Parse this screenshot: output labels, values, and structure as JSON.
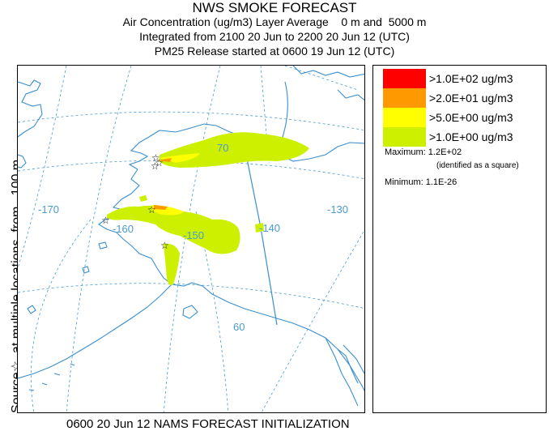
{
  "title": {
    "line1": "NWS SMOKE FORECAST",
    "line2": "Air Concentration (ug/m3) Layer Average    0 m and  5000 m",
    "line3": "Integrated from 2100 20 Jun to 2200 20 Jun 12 (UTC)",
    "line4": "PM25 Release started at 0600 19 Jun 12 (UTC)"
  },
  "side_label": "Source☆  at multiple locations  from   100 m",
  "footer": "0600 20 Jun 12 NAMS FORECAST INITIALIZATION",
  "map": {
    "longitude_labels": [
      "-170",
      "-160",
      "-150",
      "-140",
      "-130"
    ],
    "latitude_labels": [
      "70",
      "60"
    ],
    "colors": {
      "coast": "#3a8fd0",
      "grid": "#4a9bd0",
      "plume_low": "#ccf000"
    }
  },
  "legend": {
    "entries": [
      {
        "label": ">1.0E+02 ug/m3",
        "color": "#ff0000"
      },
      {
        "label": ">2.0E+01 ug/m3",
        "color": "#ff9900"
      },
      {
        "label": ">5.0E+00 ug/m3",
        "color": "#ffff00"
      },
      {
        "label": ">1.0E+00 ug/m3",
        "color": "#ccf000"
      }
    ],
    "maximum": "Maximum: 1.2E+02",
    "maximum_note": "(identified as a square)",
    "minimum": "Minimum: 1.1E-26"
  }
}
